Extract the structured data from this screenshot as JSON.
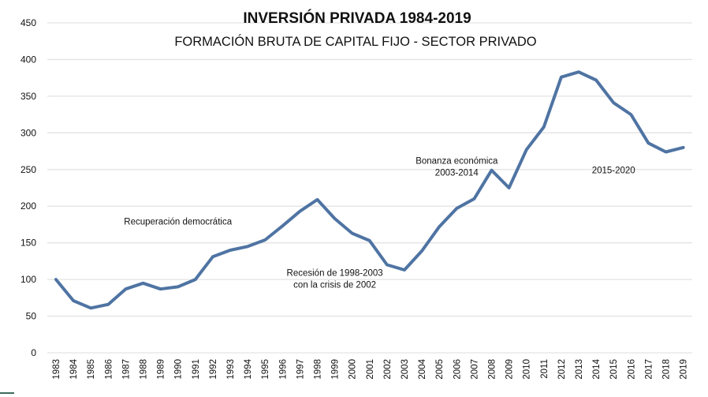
{
  "chart_data": {
    "type": "line",
    "title": "INVERSIÓN PRIVADA 1984-2019",
    "subtitle": "FORMACIÓN BRUTA DE CAPITAL FIJO - SECTOR PRIVADO",
    "xlabel": "",
    "ylabel": "",
    "ylim": [
      0,
      450
    ],
    "yticks": [
      0,
      50,
      100,
      150,
      200,
      250,
      300,
      350,
      400,
      450
    ],
    "grid": true,
    "legend": "none",
    "categories": [
      "1983",
      "1984",
      "1985",
      "1986",
      "1987",
      "1988",
      "1989",
      "1990",
      "1991",
      "1992",
      "1993",
      "1994",
      "1995",
      "1996",
      "1997",
      "1998",
      "1999",
      "2000",
      "2001",
      "2002",
      "2003",
      "2004",
      "2005",
      "2006",
      "2007",
      "2008",
      "2009",
      "2010",
      "2011",
      "2012",
      "2013",
      "2014",
      "2015",
      "2016",
      "2017",
      "2018",
      "2019"
    ],
    "series": [
      {
        "name": "Inversión privada",
        "color": "#4f74a3",
        "values": [
          100,
          71,
          61,
          66,
          87,
          95,
          87,
          90,
          100,
          131,
          140,
          145,
          154,
          173,
          193,
          209,
          183,
          163,
          153,
          120,
          113,
          139,
          172,
          197,
          210,
          249,
          225,
          277,
          308,
          376,
          383,
          372,
          341,
          325,
          286,
          274,
          280
        ]
      }
    ],
    "annotations": [
      {
        "lines": [
          "Recuperación democrática"
        ],
        "anchor_year": "1990",
        "value": 175
      },
      {
        "lines": [
          "Recesión de 1998-2003",
          "con la crisis de 2002"
        ],
        "anchor_year": "1999",
        "value": 105
      },
      {
        "lines": [
          "Bonanza económica",
          "2003-2014"
        ],
        "anchor_year": "2006",
        "value": 258
      },
      {
        "lines": [
          "2015-2020"
        ],
        "anchor_year": "2015",
        "value": 245
      }
    ]
  },
  "colors": {
    "grid": "#e3e3e3",
    "text": "#111111"
  }
}
